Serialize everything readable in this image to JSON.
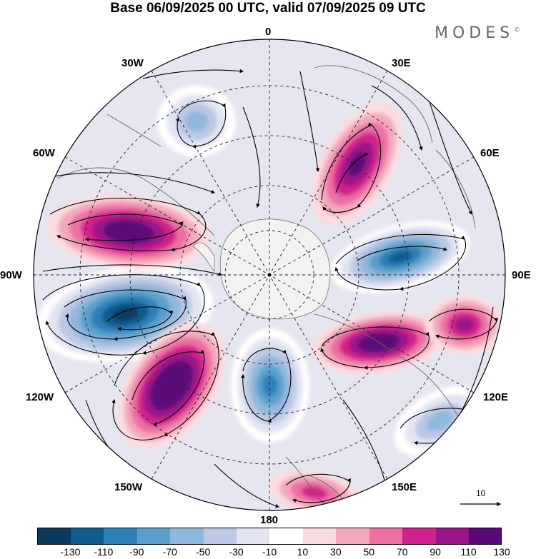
{
  "title": "Base 06/09/2025 00 UTC, valid 07/09/2025 09 UTC",
  "brand": "MODES",
  "brand_mark": "©",
  "longitude_labels": {
    "top": "0",
    "top_left": "30W",
    "top_right": "30E",
    "upper_left": "60W",
    "upper_right": "60E",
    "left": "90W",
    "right": "90E",
    "lower_left": "120W",
    "lower_right": "120E",
    "bottom_left": "150W",
    "bottom_right": "150E",
    "bottom": "180"
  },
  "vector_reference": {
    "label": "10",
    "icon": "arrow-right-icon"
  },
  "colorbar": {
    "colors": [
      "#0b3a5c",
      "#0f5c8e",
      "#2d7fb8",
      "#5aa0cc",
      "#8fb8dc",
      "#bcc8e4",
      "#e2e4f2",
      "#ffffff",
      "#fbdbe0",
      "#f4a8bc",
      "#ec6fa3",
      "#d0218c",
      "#9a1688",
      "#5a0a78"
    ],
    "ticks": [
      "-130",
      "-110",
      "-90",
      "-70",
      "-50",
      "-30",
      "-10",
      "10",
      "30",
      "50",
      "70",
      "90",
      "110",
      "130"
    ]
  },
  "map_data": {
    "projection": "south polar stereographic",
    "field_units": "anomaly",
    "anomalies": [
      {
        "name": "negative-anomaly-w90",
        "sign": "negative",
        "peak": -130
      },
      {
        "name": "positive-anomaly-w70",
        "sign": "positive",
        "peak": 110
      },
      {
        "name": "positive-anomaly-w130",
        "sign": "positive",
        "peak": 130
      },
      {
        "name": "negative-anomaly-w170",
        "sign": "negative",
        "peak": -90
      },
      {
        "name": "positive-anomaly-e35",
        "sign": "positive",
        "peak": 90
      },
      {
        "name": "negative-anomaly-e85",
        "sign": "negative",
        "peak": -110
      },
      {
        "name": "positive-anomaly-e110",
        "sign": "positive",
        "peak": 110
      },
      {
        "name": "positive-anomaly-e95",
        "sign": "positive",
        "peak": 70
      },
      {
        "name": "negative-anomaly-w20",
        "sign": "negative",
        "peak": -50
      },
      {
        "name": "negative-anomaly-e130",
        "sign": "negative",
        "peak": -50
      },
      {
        "name": "positive-anomaly-e170",
        "sign": "positive",
        "peak": 50
      }
    ]
  }
}
